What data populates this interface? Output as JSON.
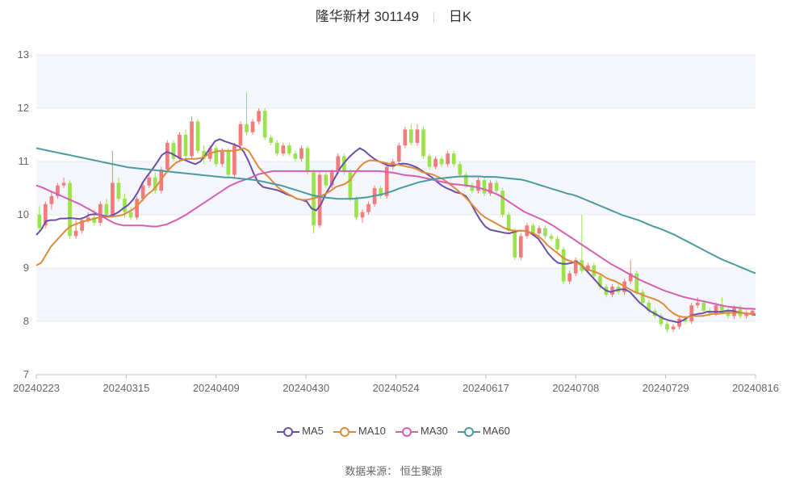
{
  "header": {
    "name": "隆华新材 301149",
    "period": "日K"
  },
  "source_text": "数据来源：  恒生聚源",
  "chart_data": {
    "type": "candlestick",
    "ylim": [
      7,
      13
    ],
    "yticks": [
      "13",
      "12",
      "11",
      "10",
      "9",
      "8",
      "7"
    ],
    "xticks": [
      "20240223",
      "20240315",
      "20240409",
      "20240430",
      "20240524",
      "20240617",
      "20240708",
      "20240729",
      "20240816"
    ],
    "grid": true,
    "legend_position": "bottom",
    "colors": {
      "up": "#f47b7b",
      "down": "#9be34b",
      "grid": "#e6e9f0",
      "band": "#f4f6fb"
    },
    "series": [
      {
        "name": "MA5",
        "color": "#6c4fa8",
        "values": [
          9.62,
          9.72,
          9.88,
          9.9,
          9.9,
          9.93,
          9.93,
          9.94,
          9.93,
          9.92,
          9.95,
          10.0,
          10.01,
          10.0,
          9.98,
          9.97,
          10.0,
          10.05,
          10.12,
          10.18,
          10.28,
          10.42,
          10.6,
          10.73,
          10.85,
          10.98,
          11.12,
          11.18,
          11.15,
          11.1,
          11.05,
          11.02,
          10.98,
          10.95,
          11.0,
          11.12,
          11.25,
          11.38,
          11.42,
          11.38,
          11.35,
          11.32,
          11.28,
          11.18,
          11.0,
          10.78,
          10.6,
          10.52,
          10.5,
          10.48,
          10.46,
          10.42,
          10.38,
          10.35,
          10.3,
          10.28,
          10.25,
          10.12,
          10.08,
          10.2,
          10.4,
          10.55,
          10.72,
          10.88,
          11.0,
          11.1,
          11.18,
          11.25,
          11.2,
          11.12,
          11.05,
          11.0,
          10.96,
          10.92,
          10.92,
          10.95,
          10.96,
          10.95,
          10.92,
          10.88,
          10.82,
          10.76,
          10.7,
          10.62,
          10.55,
          10.5,
          10.46,
          10.42,
          10.4,
          10.35,
          10.22,
          10.05,
          9.9,
          9.78,
          9.72,
          9.7,
          9.68,
          9.66,
          9.65,
          9.68,
          9.7,
          9.7,
          9.68,
          9.62,
          9.55,
          9.42,
          9.28,
          9.18,
          9.1,
          9.08,
          9.08,
          9.1,
          9.12,
          9.05,
          8.95,
          8.85,
          8.75,
          8.65,
          8.58,
          8.55,
          8.58,
          8.6,
          8.6,
          8.55,
          8.45,
          8.35,
          8.28,
          8.2,
          8.15,
          8.1,
          8.05,
          8.02,
          8.0,
          7.98,
          8.02,
          8.08,
          8.12,
          8.14,
          8.15,
          8.18,
          8.18,
          8.18,
          8.18,
          8.2,
          8.2,
          8.18,
          8.16,
          8.15,
          8.14,
          8.12
        ]
      },
      {
        "name": "MA10",
        "color": "#e08a3a",
        "values": [
          9.05,
          9.1,
          9.25,
          9.4,
          9.5,
          9.6,
          9.7,
          9.78,
          9.82,
          9.85,
          9.88,
          9.9,
          9.93,
          9.95,
          9.96,
          9.96,
          9.97,
          9.98,
          10.0,
          10.05,
          10.1,
          10.18,
          10.28,
          10.38,
          10.45,
          10.55,
          10.68,
          10.8,
          10.9,
          10.98,
          11.02,
          11.05,
          11.05,
          11.05,
          11.06,
          11.1,
          11.15,
          11.18,
          11.2,
          11.2,
          11.2,
          11.2,
          11.22,
          11.25,
          11.2,
          11.05,
          10.9,
          10.8,
          10.72,
          10.62,
          10.52,
          10.45,
          10.4,
          10.35,
          10.3,
          10.28,
          10.28,
          10.3,
          10.32,
          10.35,
          10.4,
          10.45,
          10.52,
          10.55,
          10.58,
          10.65,
          10.78,
          10.9,
          10.98,
          11.02,
          11.02,
          11.0,
          10.98,
          10.96,
          10.95,
          10.94,
          10.92,
          10.9,
          10.88,
          10.85,
          10.8,
          10.78,
          10.76,
          10.72,
          10.68,
          10.62,
          10.55,
          10.48,
          10.4,
          10.32,
          10.22,
          10.12,
          10.02,
          9.95,
          9.9,
          9.85,
          9.8,
          9.75,
          9.72,
          9.7,
          9.7,
          9.7,
          9.68,
          9.65,
          9.6,
          9.52,
          9.42,
          9.35,
          9.28,
          9.2,
          9.15,
          9.12,
          9.1,
          9.05,
          8.98,
          8.95,
          8.92,
          8.88,
          8.82,
          8.78,
          8.75,
          8.7,
          8.65,
          8.6,
          8.55,
          8.52,
          8.48,
          8.45,
          8.42,
          8.38,
          8.32,
          8.22,
          8.15,
          8.1,
          8.08,
          8.08,
          8.1,
          8.1,
          8.1,
          8.12,
          8.14,
          8.14,
          8.15,
          8.16,
          8.16,
          8.16,
          8.16,
          8.15,
          8.14,
          8.14
        ]
      },
      {
        "name": "MA30",
        "color": "#d45fb5",
        "values": [
          10.55,
          10.52,
          10.48,
          10.44,
          10.4,
          10.36,
          10.32,
          10.28,
          10.24,
          10.2,
          10.15,
          10.1,
          10.05,
          10.0,
          9.95,
          9.9,
          9.85,
          9.82,
          9.8,
          9.8,
          9.8,
          9.8,
          9.8,
          9.79,
          9.78,
          9.78,
          9.8,
          9.82,
          9.86,
          9.9,
          9.95,
          10.0,
          10.06,
          10.12,
          10.18,
          10.24,
          10.3,
          10.36,
          10.42,
          10.48,
          10.54,
          10.58,
          10.62,
          10.65,
          10.68,
          10.72,
          10.76,
          10.78,
          10.8,
          10.82,
          10.82,
          10.82,
          10.82,
          10.82,
          10.82,
          10.82,
          10.82,
          10.82,
          10.82,
          10.82,
          10.82,
          10.82,
          10.82,
          10.82,
          10.82,
          10.82,
          10.82,
          10.82,
          10.82,
          10.82,
          10.82,
          10.82,
          10.81,
          10.8,
          10.79,
          10.77,
          10.75,
          10.74,
          10.73,
          10.72,
          10.7,
          10.68,
          10.66,
          10.64,
          10.62,
          10.6,
          10.58,
          10.57,
          10.56,
          10.55,
          10.54,
          10.52,
          10.5,
          10.47,
          10.44,
          10.4,
          10.36,
          10.3,
          10.24,
          10.18,
          10.12,
          10.06,
          10.02,
          9.98,
          9.94,
          9.9,
          9.85,
          9.8,
          9.74,
          9.68,
          9.62,
          9.56,
          9.5,
          9.44,
          9.38,
          9.32,
          9.26,
          9.2,
          9.14,
          9.08,
          9.03,
          8.98,
          8.93,
          8.88,
          8.83,
          8.78,
          8.74,
          8.7,
          8.66,
          8.62,
          8.58,
          8.55,
          8.52,
          8.49,
          8.46,
          8.44,
          8.42,
          8.4,
          8.38,
          8.36,
          8.34,
          8.32,
          8.3,
          8.28,
          8.27,
          8.26,
          8.25,
          8.24,
          8.24,
          8.23
        ]
      },
      {
        "name": "MA60",
        "color": "#4a9aa0",
        "values": [
          11.25,
          11.23,
          11.21,
          11.19,
          11.17,
          11.15,
          11.13,
          11.11,
          11.09,
          11.07,
          11.05,
          11.03,
          11.01,
          10.99,
          10.97,
          10.95,
          10.93,
          10.91,
          10.89,
          10.88,
          10.87,
          10.86,
          10.85,
          10.84,
          10.83,
          10.82,
          10.81,
          10.8,
          10.79,
          10.78,
          10.77,
          10.76,
          10.75,
          10.74,
          10.73,
          10.72,
          10.71,
          10.7,
          10.7,
          10.69,
          10.68,
          10.67,
          10.66,
          10.65,
          10.63,
          10.61,
          10.59,
          10.57,
          10.55,
          10.52,
          10.49,
          10.46,
          10.43,
          10.4,
          10.37,
          10.35,
          10.33,
          10.32,
          10.31,
          10.3,
          10.3,
          10.3,
          10.3,
          10.31,
          10.32,
          10.33,
          10.35,
          10.37,
          10.39,
          10.42,
          10.45,
          10.49,
          10.52,
          10.55,
          10.58,
          10.61,
          10.63,
          10.65,
          10.67,
          10.68,
          10.69,
          10.7,
          10.71,
          10.72,
          10.72,
          10.72,
          10.72,
          10.72,
          10.71,
          10.71,
          10.71,
          10.7,
          10.69,
          10.68,
          10.67,
          10.66,
          10.64,
          10.61,
          10.58,
          10.55,
          10.52,
          10.49,
          10.46,
          10.43,
          10.4,
          10.38,
          10.35,
          10.31,
          10.27,
          10.23,
          10.19,
          10.15,
          10.11,
          10.07,
          10.03,
          9.99,
          9.96,
          9.93,
          9.9,
          9.86,
          9.82,
          9.78,
          9.75,
          9.71,
          9.67,
          9.63,
          9.58,
          9.53,
          9.48,
          9.43,
          9.38,
          9.33,
          9.28,
          9.23,
          9.18,
          9.14,
          9.1,
          9.06,
          9.02,
          8.98,
          8.94,
          8.9
        ]
      }
    ],
    "candles": [
      [
        10.0,
        9.75,
        10.15,
        9.7
      ],
      [
        9.8,
        10.2,
        10.25,
        9.75
      ],
      [
        10.2,
        10.35,
        10.45,
        10.1
      ],
      [
        10.35,
        10.55,
        10.6,
        10.3
      ],
      [
        10.55,
        10.6,
        10.7,
        10.5
      ],
      [
        10.6,
        9.6,
        10.65,
        9.55
      ],
      [
        9.6,
        9.7,
        9.9,
        9.55
      ],
      [
        9.7,
        9.9,
        9.95,
        9.65
      ],
      [
        9.9,
        9.95,
        10.05,
        9.85
      ],
      [
        9.95,
        9.85,
        10.1,
        9.8
      ],
      [
        9.85,
        10.2,
        10.25,
        9.8
      ],
      [
        10.2,
        10.0,
        10.3,
        9.95
      ],
      [
        10.0,
        10.6,
        11.2,
        9.95
      ],
      [
        10.6,
        10.3,
        10.7,
        10.25
      ],
      [
        10.3,
        10.05,
        10.4,
        9.95
      ],
      [
        10.05,
        9.95,
        10.15,
        9.9
      ],
      [
        9.95,
        10.3,
        10.35,
        9.9
      ],
      [
        10.3,
        10.55,
        10.6,
        10.25
      ],
      [
        10.55,
        10.7,
        10.75,
        10.5
      ],
      [
        10.7,
        10.45,
        10.8,
        10.4
      ],
      [
        10.45,
        10.85,
        10.9,
        10.4
      ],
      [
        10.85,
        11.35,
        11.4,
        10.8
      ],
      [
        11.35,
        11.05,
        11.4,
        11.0
      ],
      [
        11.05,
        11.5,
        11.55,
        11.0
      ],
      [
        11.5,
        11.1,
        11.6,
        11.05
      ],
      [
        11.1,
        11.75,
        11.85,
        11.05
      ],
      [
        11.75,
        11.2,
        11.8,
        11.15
      ],
      [
        11.2,
        11.05,
        11.3,
        10.95
      ],
      [
        11.05,
        11.25,
        11.3,
        11.0
      ],
      [
        11.25,
        10.95,
        11.3,
        10.9
      ],
      [
        10.95,
        11.2,
        11.25,
        10.9
      ],
      [
        11.2,
        10.75,
        11.25,
        10.7
      ],
      [
        10.75,
        11.3,
        11.35,
        10.7
      ],
      [
        11.3,
        11.7,
        11.75,
        11.25
      ],
      [
        11.7,
        11.55,
        12.3,
        11.5
      ],
      [
        11.55,
        11.75,
        11.8,
        11.5
      ],
      [
        11.75,
        11.95,
        12.0,
        11.7
      ],
      [
        11.95,
        11.45,
        12.0,
        11.4
      ],
      [
        11.45,
        11.35,
        11.5,
        11.3
      ],
      [
        11.35,
        11.15,
        11.4,
        11.1
      ],
      [
        11.15,
        11.3,
        11.35,
        11.1
      ],
      [
        11.3,
        11.15,
        11.35,
        11.1
      ],
      [
        11.15,
        11.05,
        11.2,
        11.0
      ],
      [
        11.05,
        11.25,
        11.3,
        11.0
      ],
      [
        11.25,
        10.8,
        11.3,
        10.75
      ],
      [
        10.8,
        9.8,
        10.85,
        9.65
      ],
      [
        9.8,
        10.75,
        10.8,
        9.75
      ],
      [
        10.75,
        10.55,
        10.8,
        10.5
      ],
      [
        10.55,
        10.8,
        10.85,
        10.5
      ],
      [
        10.8,
        11.1,
        11.15,
        10.75
      ],
      [
        11.1,
        10.8,
        11.15,
        10.75
      ],
      [
        10.8,
        10.3,
        10.85,
        10.25
      ],
      [
        10.3,
        9.95,
        10.35,
        9.9
      ],
      [
        9.95,
        10.05,
        10.1,
        9.85
      ],
      [
        10.05,
        10.2,
        10.25,
        10.0
      ],
      [
        10.2,
        10.5,
        10.55,
        10.15
      ],
      [
        10.5,
        10.35,
        10.55,
        10.3
      ],
      [
        10.35,
        10.9,
        10.95,
        10.3
      ],
      [
        10.9,
        11.0,
        11.05,
        10.85
      ],
      [
        11.0,
        11.3,
        11.35,
        10.95
      ],
      [
        11.3,
        11.6,
        11.65,
        11.25
      ],
      [
        11.6,
        11.35,
        11.7,
        11.3
      ],
      [
        11.35,
        11.6,
        11.7,
        11.3
      ],
      [
        11.6,
        11.1,
        11.65,
        11.05
      ],
      [
        11.1,
        10.9,
        11.15,
        10.85
      ],
      [
        10.9,
        11.05,
        11.1,
        10.85
      ],
      [
        11.05,
        10.95,
        11.1,
        10.9
      ],
      [
        10.95,
        11.15,
        11.2,
        10.9
      ],
      [
        11.15,
        10.95,
        11.2,
        10.9
      ],
      [
        10.95,
        10.75,
        11.0,
        10.7
      ],
      [
        10.75,
        10.55,
        10.8,
        10.5
      ],
      [
        10.55,
        10.45,
        10.6,
        10.4
      ],
      [
        10.45,
        10.65,
        10.7,
        10.4
      ],
      [
        10.65,
        10.4,
        10.7,
        10.35
      ],
      [
        10.4,
        10.6,
        10.65,
        10.35
      ],
      [
        10.6,
        10.45,
        10.65,
        10.4
      ],
      [
        10.45,
        10.0,
        10.5,
        9.95
      ],
      [
        10.0,
        9.7,
        10.05,
        9.65
      ],
      [
        9.7,
        9.2,
        9.75,
        9.15
      ],
      [
        9.2,
        9.6,
        9.65,
        9.15
      ],
      [
        9.6,
        9.8,
        9.85,
        9.55
      ],
      [
        9.8,
        9.65,
        9.85,
        9.6
      ],
      [
        9.65,
        9.75,
        9.8,
        9.6
      ],
      [
        9.75,
        9.6,
        9.8,
        9.55
      ],
      [
        9.6,
        9.55,
        9.65,
        9.5
      ],
      [
        9.55,
        9.35,
        9.6,
        9.3
      ],
      [
        9.35,
        8.75,
        9.4,
        8.7
      ],
      [
        8.75,
        8.9,
        8.95,
        8.7
      ],
      [
        8.9,
        9.15,
        9.2,
        8.85
      ],
      [
        9.15,
        8.95,
        10.0,
        8.9
      ],
      [
        8.95,
        9.05,
        9.1,
        8.9
      ],
      [
        9.05,
        8.85,
        9.1,
        8.8
      ],
      [
        8.85,
        8.65,
        8.9,
        8.6
      ],
      [
        8.65,
        8.5,
        8.7,
        8.45
      ],
      [
        8.5,
        8.65,
        8.7,
        8.45
      ],
      [
        8.65,
        8.55,
        8.7,
        8.5
      ],
      [
        8.55,
        8.75,
        8.8,
        8.5
      ],
      [
        8.75,
        8.9,
        9.15,
        8.7
      ],
      [
        8.9,
        8.55,
        8.95,
        8.5
      ],
      [
        8.55,
        8.35,
        8.6,
        8.3
      ],
      [
        8.35,
        8.2,
        8.4,
        8.15
      ],
      [
        8.2,
        8.1,
        8.25,
        8.05
      ],
      [
        8.1,
        7.95,
        8.15,
        7.9
      ],
      [
        7.95,
        7.85,
        8.0,
        7.8
      ],
      [
        7.85,
        7.9,
        7.95,
        7.8
      ],
      [
        7.9,
        8.05,
        8.1,
        7.85
      ],
      [
        8.05,
        8.0,
        8.1,
        7.95
      ],
      [
        8.0,
        8.3,
        8.35,
        7.95
      ],
      [
        8.3,
        8.35,
        8.45,
        8.25
      ],
      [
        8.35,
        8.2,
        8.4,
        8.15
      ],
      [
        8.2,
        8.15,
        8.25,
        8.1
      ],
      [
        8.15,
        8.3,
        8.35,
        8.1
      ],
      [
        8.3,
        8.2,
        8.45,
        8.15
      ],
      [
        8.2,
        8.1,
        8.25,
        8.05
      ],
      [
        8.1,
        8.25,
        8.3,
        8.05
      ],
      [
        8.25,
        8.1,
        8.3,
        8.05
      ],
      [
        8.1,
        8.15,
        8.2,
        8.05
      ],
      [
        8.15,
        8.2,
        8.25,
        8.1
      ]
    ]
  },
  "colors": {
    "title": "#333333",
    "axis_text": "#666666",
    "axis_line": "#b8bfcc"
  }
}
